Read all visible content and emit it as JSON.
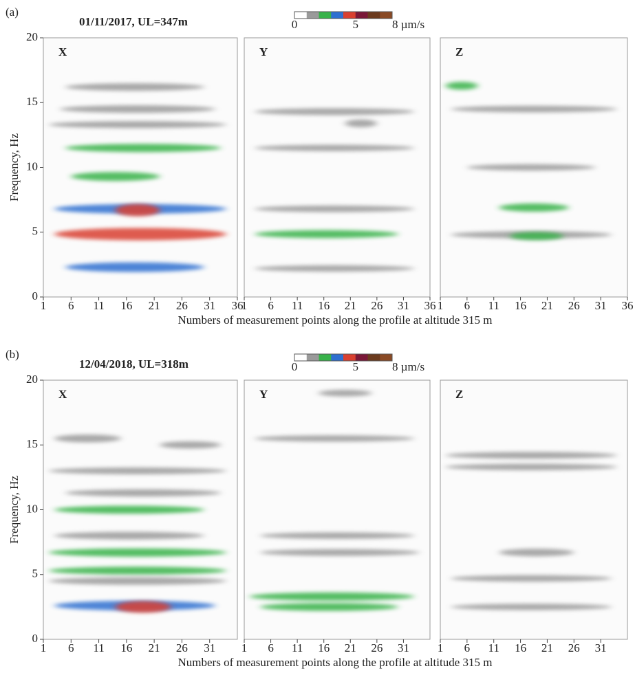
{
  "chart_data": [
    {
      "label": "(a)",
      "title": "01/11/2017, UL=347m",
      "colorbar": {
        "lim": [
          0,
          8
        ],
        "ticks": [
          0,
          5,
          {
            "value": 8,
            "label": "8 µm/s"
          }
        ],
        "colors": [
          "#ffffff",
          "#9a9a9a",
          "#38b24a",
          "#2e6fd0",
          "#d94030",
          "#7a1838",
          "#6b3a1e",
          "#8a4a25"
        ]
      },
      "ylabel": "Frequency, Hz",
      "xlabel": "Numbers of measurement points along the profile at altitude 315 m",
      "panels": [
        {
          "type": "heatmap",
          "name": "X",
          "xlim": [
            1,
            36
          ],
          "xticks": [
            1,
            6,
            11,
            16,
            21,
            26,
            31,
            36
          ],
          "ylim": [
            0,
            20
          ],
          "yticks": [
            0,
            5,
            10,
            15,
            20
          ],
          "hotspots": [
            {
              "from": 2,
              "to": 34,
              "freq": 13.3,
              "amp": 1
            },
            {
              "from": 4,
              "to": 32,
              "freq": 14.5,
              "amp": 1.5
            },
            {
              "from": 5,
              "to": 30,
              "freq": 16.2,
              "amp": 1.5
            },
            {
              "from": 5,
              "to": 33,
              "freq": 11.5,
              "amp": 2
            },
            {
              "from": 6,
              "to": 22,
              "freq": 9.3,
              "amp": 2.5
            },
            {
              "from": 3,
              "to": 34,
              "freq": 6.8,
              "amp": 3
            },
            {
              "from": 14,
              "to": 22,
              "freq": 6.7,
              "amp": 5
            },
            {
              "from": 3,
              "to": 34,
              "freq": 4.85,
              "amp": 5
            },
            {
              "from": 5,
              "to": 30,
              "freq": 2.3,
              "amp": 3
            }
          ]
        },
        {
          "type": "heatmap",
          "name": "Y",
          "xlim": [
            1,
            36
          ],
          "xticks": [
            1,
            6,
            11,
            16,
            21,
            26,
            31,
            36
          ],
          "ylim": [
            0,
            20
          ],
          "hotspots": [
            {
              "from": 3,
              "to": 33,
              "freq": 14.3,
              "amp": 1
            },
            {
              "from": 20,
              "to": 26,
              "freq": 13.4,
              "amp": 1.7
            },
            {
              "from": 3,
              "to": 33,
              "freq": 11.5,
              "amp": 0.6
            },
            {
              "from": 3,
              "to": 33,
              "freq": 6.8,
              "amp": 0.8
            },
            {
              "from": 3,
              "to": 30,
              "freq": 4.85,
              "amp": 1.8
            },
            {
              "from": 3,
              "to": 33,
              "freq": 2.2,
              "amp": 0.6
            }
          ]
        },
        {
          "type": "heatmap",
          "name": "Z",
          "xlim": [
            1,
            36
          ],
          "xticks": [
            1,
            6,
            11,
            16,
            21,
            26,
            31,
            36
          ],
          "ylim": [
            0,
            20
          ],
          "hotspots": [
            {
              "from": 2,
              "to": 8,
              "freq": 16.3,
              "amp": 1.8
            },
            {
              "from": 3,
              "to": 34,
              "freq": 14.5,
              "amp": 0.8
            },
            {
              "from": 6,
              "to": 30,
              "freq": 10,
              "amp": 0.6
            },
            {
              "from": 12,
              "to": 25,
              "freq": 6.9,
              "amp": 2
            },
            {
              "from": 3,
              "to": 33,
              "freq": 4.8,
              "amp": 1.2
            },
            {
              "from": 14,
              "to": 24,
              "freq": 4.7,
              "amp": 2
            }
          ]
        }
      ]
    },
    {
      "label": "(b)",
      "title": "12/04/2018, UL=318m",
      "colorbar": {
        "lim": [
          0,
          8
        ],
        "ticks": [
          0,
          5,
          {
            "value": 8,
            "label": "8 µm/s"
          }
        ],
        "colors": [
          "#ffffff",
          "#9a9a9a",
          "#38b24a",
          "#2e6fd0",
          "#d94030",
          "#7a1838",
          "#6b3a1e",
          "#8a4a25"
        ]
      },
      "ylabel": "Frequency, Hz",
      "xlabel": "Numbers of measurement points along the profile at altitude 315 m",
      "panels": [
        {
          "type": "heatmap",
          "name": "X",
          "xlim": [
            1,
            36
          ],
          "xticks": [
            1,
            6,
            11,
            16,
            21,
            26,
            31
          ],
          "ylim": [
            0,
            20
          ],
          "yticks": [
            0,
            5,
            10,
            15,
            20
          ],
          "hotspots": [
            {
              "from": 3,
              "to": 15,
              "freq": 15.5,
              "amp": 1.7
            },
            {
              "from": 22,
              "to": 33,
              "freq": 15,
              "amp": 1.3
            },
            {
              "from": 2,
              "to": 34,
              "freq": 13,
              "amp": 0.9
            },
            {
              "from": 5,
              "to": 33,
              "freq": 11.3,
              "amp": 1.2
            },
            {
              "from": 3,
              "to": 30,
              "freq": 10,
              "amp": 1.8
            },
            {
              "from": 3,
              "to": 30,
              "freq": 8,
              "amp": 1.5
            },
            {
              "from": 2,
              "to": 34,
              "freq": 6.7,
              "amp": 2
            },
            {
              "from": 2,
              "to": 34,
              "freq": 5.3,
              "amp": 1.8
            },
            {
              "from": 2,
              "to": 34,
              "freq": 4.5,
              "amp": 1.5
            },
            {
              "from": 3,
              "to": 32,
              "freq": 2.6,
              "amp": 3
            },
            {
              "from": 14,
              "to": 24,
              "freq": 2.5,
              "amp": 4.5
            }
          ]
        },
        {
          "type": "heatmap",
          "name": "Y",
          "xlim": [
            1,
            36
          ],
          "xticks": [
            1,
            6,
            11,
            16,
            21,
            26,
            31
          ],
          "ylim": [
            0,
            20
          ],
          "hotspots": [
            {
              "from": 15,
              "to": 25,
              "freq": 19,
              "amp": 0.8
            },
            {
              "from": 3,
              "to": 33,
              "freq": 15.5,
              "amp": 0.6
            },
            {
              "from": 4,
              "to": 33,
              "freq": 8,
              "amp": 0.7
            },
            {
              "from": 4,
              "to": 34,
              "freq": 6.7,
              "amp": 0.9
            },
            {
              "from": 2,
              "to": 33,
              "freq": 3.3,
              "amp": 2
            },
            {
              "from": 4,
              "to": 30,
              "freq": 2.5,
              "amp": 1.8
            }
          ]
        },
        {
          "type": "heatmap",
          "name": "Z",
          "xlim": [
            1,
            36
          ],
          "xticks": [
            1,
            6,
            11,
            16,
            21,
            26,
            31
          ],
          "ylim": [
            0,
            20
          ],
          "hotspots": [
            {
              "from": 2,
              "to": 34,
              "freq": 14.2,
              "amp": 0.9
            },
            {
              "from": 2,
              "to": 34,
              "freq": 13.3,
              "amp": 0.7
            },
            {
              "from": 12,
              "to": 26,
              "freq": 6.7,
              "amp": 1.5
            },
            {
              "from": 3,
              "to": 33,
              "freq": 4.7,
              "amp": 0.7
            },
            {
              "from": 3,
              "to": 33,
              "freq": 2.5,
              "amp": 0.6
            }
          ]
        }
      ]
    }
  ]
}
